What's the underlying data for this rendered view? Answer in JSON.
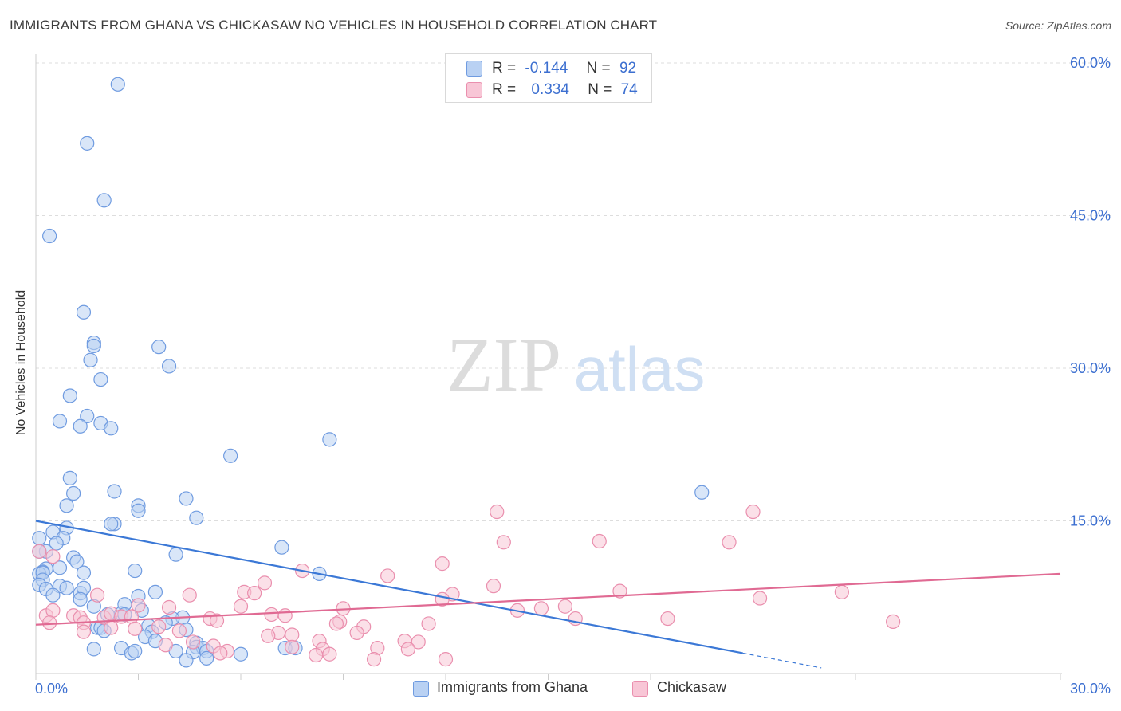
{
  "title": "IMMIGRANTS FROM GHANA VS CHICKASAW NO VEHICLES IN HOUSEHOLD CORRELATION CHART",
  "source": "Source: ZipAtlas.com",
  "watermark": {
    "zip": "ZIP",
    "atlas": "atlas"
  },
  "legend": {
    "rows": [
      {
        "r_label": "R =",
        "r_value": "-0.144",
        "n_label": "N =",
        "n_value": "92",
        "fill": "#b9d1f3",
        "stroke": "#6f9be0"
      },
      {
        "r_label": "R =",
        "r_value": "0.334",
        "n_label": "N =",
        "n_value": "74",
        "fill": "#f8c6d6",
        "stroke": "#ea8fae"
      }
    ]
  },
  "chart_data": {
    "type": "scatter",
    "title": "IMMIGRANTS FROM GHANA VS CHICKASAW NO VEHICLES IN HOUSEHOLD CORRELATION CHART",
    "xlabel": "",
    "ylabel": "No Vehicles in Household",
    "xlim": [
      0,
      30
    ],
    "ylim": [
      0,
      60
    ],
    "x_tick_labels": [
      {
        "value": 0,
        "label": "0.0%"
      },
      {
        "value": 30,
        "label": "30.0%"
      }
    ],
    "y_tick_labels": [
      {
        "value": 15,
        "label": "15.0%"
      },
      {
        "value": 30,
        "label": "30.0%"
      },
      {
        "value": 45,
        "label": "45.0%"
      },
      {
        "value": 60,
        "label": "60.0%"
      }
    ],
    "grid": true,
    "legend_position": "top-center",
    "series": [
      {
        "name": "Immigrants from Ghana",
        "color": "#6f9be0",
        "fill": "#b9d1f3",
        "trend": {
          "x0": 0,
          "y0": 15.0,
          "x1": 20.7,
          "y1": 2.0,
          "dash_to_x": 23
        },
        "points": [
          [
            2.4,
            57.9
          ],
          [
            1.5,
            52.1
          ],
          [
            2.0,
            46.5
          ],
          [
            0.4,
            43.0
          ],
          [
            1.4,
            35.5
          ],
          [
            1.7,
            32.5
          ],
          [
            1.7,
            32.2
          ],
          [
            3.6,
            32.1
          ],
          [
            1.6,
            30.8
          ],
          [
            3.9,
            30.2
          ],
          [
            1.9,
            28.9
          ],
          [
            1.0,
            27.3
          ],
          [
            0.7,
            24.8
          ],
          [
            1.5,
            25.3
          ],
          [
            1.3,
            24.3
          ],
          [
            1.9,
            24.6
          ],
          [
            2.2,
            24.1
          ],
          [
            8.6,
            23.0
          ],
          [
            5.7,
            21.4
          ],
          [
            1.0,
            19.2
          ],
          [
            2.3,
            17.9
          ],
          [
            1.1,
            17.7
          ],
          [
            4.4,
            17.2
          ],
          [
            0.9,
            16.5
          ],
          [
            3.0,
            16.5
          ],
          [
            3.0,
            16.0
          ],
          [
            2.3,
            14.7
          ],
          [
            2.2,
            14.7
          ],
          [
            4.7,
            15.3
          ],
          [
            19.5,
            17.8
          ],
          [
            0.5,
            13.9
          ],
          [
            0.9,
            14.3
          ],
          [
            0.1,
            13.3
          ],
          [
            0.8,
            13.3
          ],
          [
            0.6,
            12.8
          ],
          [
            0.3,
            12.0
          ],
          [
            0.1,
            12.0
          ],
          [
            7.2,
            12.4
          ],
          [
            4.1,
            11.7
          ],
          [
            1.1,
            11.4
          ],
          [
            1.2,
            11.0
          ],
          [
            0.3,
            10.3
          ],
          [
            0.7,
            10.4
          ],
          [
            0.2,
            10.0
          ],
          [
            0.1,
            9.8
          ],
          [
            0.2,
            9.9
          ],
          [
            1.4,
            9.9
          ],
          [
            2.9,
            10.1
          ],
          [
            8.3,
            9.8
          ],
          [
            0.2,
            9.2
          ],
          [
            0.1,
            8.7
          ],
          [
            0.3,
            8.3
          ],
          [
            0.7,
            8.6
          ],
          [
            0.9,
            8.4
          ],
          [
            1.3,
            7.9
          ],
          [
            1.4,
            8.4
          ],
          [
            3.5,
            8.0
          ],
          [
            0.5,
            7.7
          ],
          [
            1.3,
            7.3
          ],
          [
            3.0,
            7.6
          ],
          [
            1.7,
            6.6
          ],
          [
            2.6,
            6.8
          ],
          [
            3.1,
            6.2
          ],
          [
            2.1,
            5.8
          ],
          [
            2.5,
            5.9
          ],
          [
            2.6,
            5.8
          ],
          [
            4.3,
            5.5
          ],
          [
            4.0,
            5.4
          ],
          [
            3.8,
            5.0
          ],
          [
            1.8,
            4.5
          ],
          [
            1.9,
            4.5
          ],
          [
            2.0,
            4.2
          ],
          [
            3.3,
            4.7
          ],
          [
            3.4,
            4.1
          ],
          [
            4.4,
            4.3
          ],
          [
            3.2,
            3.6
          ],
          [
            3.5,
            3.2
          ],
          [
            4.7,
            3.0
          ],
          [
            4.7,
            2.6
          ],
          [
            4.9,
            2.5
          ],
          [
            5.0,
            2.2
          ],
          [
            2.5,
            2.5
          ],
          [
            4.1,
            2.2
          ],
          [
            4.6,
            2.1
          ],
          [
            2.8,
            2.0
          ],
          [
            7.3,
            2.5
          ],
          [
            1.7,
            2.4
          ],
          [
            7.6,
            2.5
          ],
          [
            6.0,
            1.9
          ],
          [
            5.0,
            1.5
          ],
          [
            4.4,
            1.3
          ],
          [
            2.9,
            2.2
          ]
        ]
      },
      {
        "name": "Chickasaw",
        "color": "#ea8fae",
        "fill": "#f8c6d6",
        "trend": {
          "x0": 0,
          "y0": 4.8,
          "x1": 30,
          "y1": 9.8
        },
        "points": [
          [
            0.1,
            12.0
          ],
          [
            0.5,
            11.5
          ],
          [
            13.5,
            15.9
          ],
          [
            21.0,
            15.9
          ],
          [
            13.7,
            12.9
          ],
          [
            16.5,
            13.0
          ],
          [
            20.3,
            12.9
          ],
          [
            11.9,
            10.8
          ],
          [
            7.8,
            10.1
          ],
          [
            10.3,
            9.6
          ],
          [
            6.7,
            8.9
          ],
          [
            6.1,
            8.0
          ],
          [
            6.4,
            7.9
          ],
          [
            13.4,
            8.6
          ],
          [
            17.1,
            8.1
          ],
          [
            12.2,
            7.8
          ],
          [
            11.9,
            7.3
          ],
          [
            4.5,
            7.7
          ],
          [
            1.8,
            7.7
          ],
          [
            3.0,
            6.7
          ],
          [
            3.9,
            6.5
          ],
          [
            6.0,
            6.6
          ],
          [
            9.0,
            6.4
          ],
          [
            14.8,
            6.4
          ],
          [
            15.5,
            6.6
          ],
          [
            14.1,
            6.2
          ],
          [
            21.2,
            7.4
          ],
          [
            23.6,
            8.0
          ],
          [
            0.3,
            5.7
          ],
          [
            0.5,
            6.2
          ],
          [
            1.1,
            5.7
          ],
          [
            1.3,
            5.5
          ],
          [
            2.0,
            5.5
          ],
          [
            2.2,
            5.9
          ],
          [
            2.5,
            5.6
          ],
          [
            2.8,
            5.6
          ],
          [
            5.1,
            5.4
          ],
          [
            5.3,
            5.2
          ],
          [
            6.9,
            5.8
          ],
          [
            7.3,
            5.7
          ],
          [
            8.9,
            5.1
          ],
          [
            8.8,
            4.9
          ],
          [
            9.6,
            4.6
          ],
          [
            11.5,
            4.9
          ],
          [
            15.8,
            5.4
          ],
          [
            18.5,
            5.4
          ],
          [
            25.1,
            5.1
          ],
          [
            0.4,
            5.0
          ],
          [
            1.4,
            5.0
          ],
          [
            2.2,
            4.5
          ],
          [
            2.9,
            4.4
          ],
          [
            3.6,
            4.6
          ],
          [
            4.2,
            4.2
          ],
          [
            1.4,
            4.1
          ],
          [
            7.1,
            4.0
          ],
          [
            9.4,
            4.0
          ],
          [
            7.5,
            3.8
          ],
          [
            6.8,
            3.7
          ],
          [
            4.6,
            3.1
          ],
          [
            5.2,
            2.7
          ],
          [
            8.3,
            3.2
          ],
          [
            10.8,
            3.2
          ],
          [
            11.2,
            3.1
          ],
          [
            3.8,
            2.8
          ],
          [
            5.6,
            2.2
          ],
          [
            7.5,
            2.6
          ],
          [
            8.4,
            2.4
          ],
          [
            10.0,
            2.5
          ],
          [
            10.9,
            2.4
          ],
          [
            8.6,
            1.9
          ],
          [
            8.2,
            1.8
          ],
          [
            9.9,
            1.4
          ],
          [
            12.0,
            1.4
          ],
          [
            5.4,
            2.0
          ]
        ]
      }
    ]
  },
  "bottom_legend": {
    "items": [
      {
        "label": "Immigrants from Ghana",
        "fill": "#b9d1f3",
        "stroke": "#6f9be0"
      },
      {
        "label": "Chickasaw",
        "fill": "#f8c6d6",
        "stroke": "#ea8fae"
      }
    ]
  }
}
